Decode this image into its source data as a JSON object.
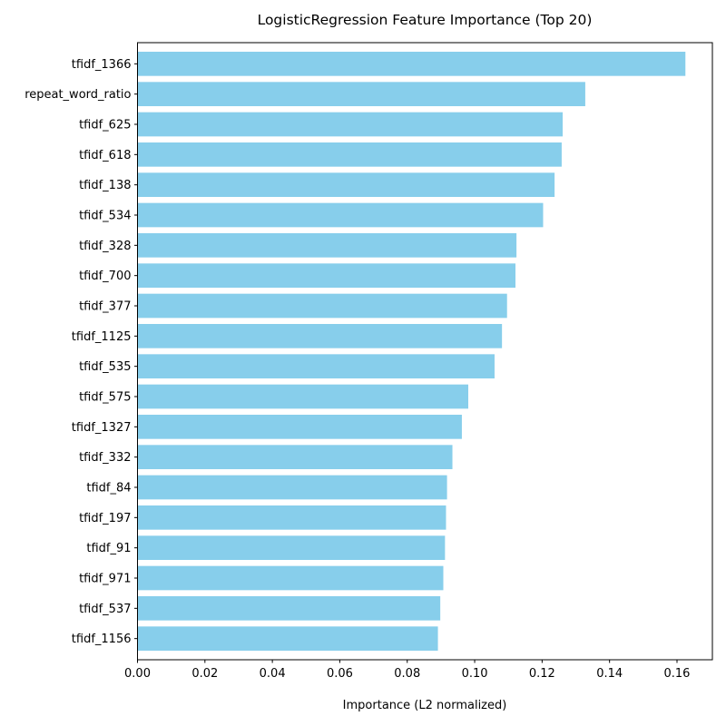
{
  "chart_data": {
    "type": "bar",
    "orientation": "horizontal",
    "title": "LogisticRegression Feature Importance (Top 20)",
    "xlabel": "Importance (L2 normalized)",
    "ylabel": "",
    "xlim": [
      0,
      0.1705
    ],
    "xticks": [
      0.0,
      0.02,
      0.04,
      0.06,
      0.08,
      0.1,
      0.12,
      0.14,
      0.16
    ],
    "xtick_labels": [
      "0.00",
      "0.02",
      "0.04",
      "0.06",
      "0.08",
      "0.10",
      "0.12",
      "0.14",
      "0.16"
    ],
    "grid": false,
    "bar_color": "#87ceeb",
    "categories": [
      "tfidf_1366",
      "repeat_word_ratio",
      "tfidf_625",
      "tfidf_618",
      "tfidf_138",
      "tfidf_534",
      "tfidf_328",
      "tfidf_700",
      "tfidf_377",
      "tfidf_1125",
      "tfidf_535",
      "tfidf_575",
      "tfidf_1327",
      "tfidf_332",
      "tfidf_84",
      "tfidf_197",
      "tfidf_91",
      "tfidf_971",
      "tfidf_537",
      "tfidf_1156"
    ],
    "values": [
      0.1625,
      0.1328,
      0.1261,
      0.1258,
      0.1237,
      0.1203,
      0.1124,
      0.1121,
      0.1096,
      0.1081,
      0.1059,
      0.0981,
      0.0962,
      0.0934,
      0.0918,
      0.0915,
      0.0912,
      0.0907,
      0.0898,
      0.0891
    ]
  }
}
